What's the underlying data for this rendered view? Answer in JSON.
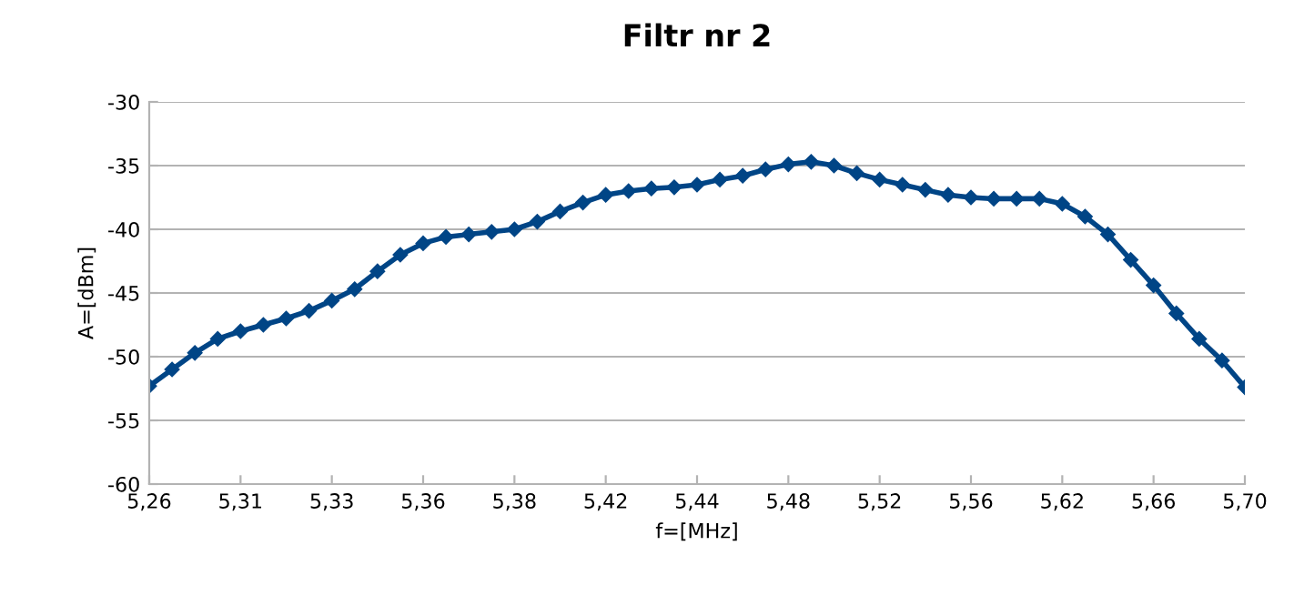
{
  "chart_data": {
    "type": "line",
    "title": "Filtr nr 2",
    "xlabel": "f=[MHz]",
    "ylabel": "A=[dBm]",
    "categories": [
      "5,26",
      null,
      null,
      null,
      "5,31",
      null,
      null,
      null,
      "5,33",
      null,
      null,
      null,
      "5,36",
      null,
      null,
      null,
      "5,38",
      null,
      null,
      null,
      "5,42",
      null,
      null,
      null,
      "5,44",
      null,
      null,
      null,
      "5,48",
      null,
      null,
      null,
      "5,52",
      null,
      null,
      null,
      "5,56",
      null,
      null,
      null,
      "5,62",
      null,
      null,
      null,
      "5,66",
      null,
      null,
      null,
      "5,70"
    ],
    "series": [
      {
        "color": "#004586",
        "values": [
          -52.3,
          -51.0,
          -49.7,
          -48.6,
          -48.0,
          -47.5,
          -47.0,
          -46.4,
          -45.6,
          -44.7,
          -43.3,
          -42.0,
          -41.1,
          -40.6,
          -40.4,
          -40.2,
          -40.0,
          -39.4,
          -38.6,
          -37.9,
          -37.3,
          -37.0,
          -36.8,
          -36.7,
          -36.5,
          -36.1,
          -35.8,
          -35.3,
          -34.9,
          -34.7,
          -35.0,
          -35.6,
          -36.1,
          -36.5,
          -36.9,
          -37.3,
          -37.5,
          -37.6,
          -37.6,
          -37.6,
          -38.0,
          -39.0,
          -40.4,
          -42.4,
          -44.4,
          -46.6,
          -48.6,
          -50.3,
          -52.4
        ]
      }
    ],
    "ylim": [
      -60,
      -30
    ],
    "yticks": [
      -60,
      -55,
      -50,
      -45,
      -40,
      -35,
      -30
    ],
    "grid": "y",
    "legend": false,
    "marker": "diamond",
    "line_style": "solid"
  }
}
